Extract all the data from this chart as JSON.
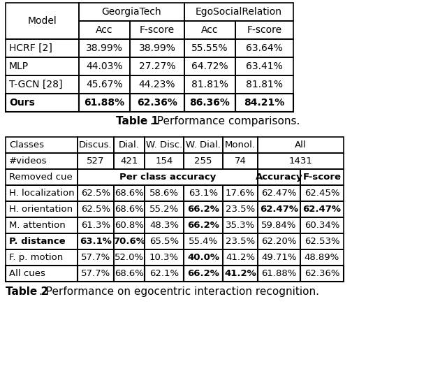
{
  "table1": {
    "rows": [
      [
        "HCRF [2]",
        "38.99%",
        "38.99%",
        "55.55%",
        "63.64%"
      ],
      [
        "MLP",
        "44.03%",
        "27.27%",
        "64.72%",
        "63.41%"
      ],
      [
        "T-GCN [28]",
        "45.67%",
        "44.23%",
        "81.81%",
        "81.81%"
      ]
    ],
    "last_row": [
      "Ours",
      "61.88%",
      "62.36%",
      "86.36%",
      "84.21%"
    ]
  },
  "table2": {
    "rows": [
      [
        "H. localization",
        "62.5%",
        "68.6%",
        "58.6%",
        "63.1%",
        "17.6%",
        "62.47%",
        "62.45%"
      ],
      [
        "H. orientation",
        "62.5%",
        "68.6%",
        "55.2%",
        "66.2%",
        "23.5%",
        "62.47%",
        "62.47%"
      ],
      [
        "M. attention",
        "61.3%",
        "60.8%",
        "48.3%",
        "66.2%",
        "35.3%",
        "59.84%",
        "60.34%"
      ],
      [
        "P. distance",
        "63.1%",
        "70.6%",
        "65.5%",
        "55.4%",
        "23.5%",
        "62.20%",
        "62.53%"
      ],
      [
        "F. p. motion",
        "57.7%",
        "52.0%",
        "10.3%",
        "40.0%",
        "41.2%",
        "49.71%",
        "48.89%"
      ]
    ],
    "rows_bold": [
      [
        false,
        false,
        false,
        false,
        false,
        false,
        false,
        false
      ],
      [
        false,
        false,
        false,
        false,
        true,
        false,
        true,
        true
      ],
      [
        false,
        false,
        false,
        false,
        true,
        false,
        false,
        false
      ],
      [
        true,
        true,
        true,
        false,
        false,
        false,
        false,
        false
      ],
      [
        false,
        false,
        false,
        false,
        true,
        false,
        false,
        false
      ]
    ],
    "last_row": [
      "All cues",
      "57.7%",
      "68.6%",
      "62.1%",
      "66.2%",
      "41.2%",
      "61.88%",
      "62.36%"
    ],
    "last_row_bold": [
      false,
      false,
      false,
      false,
      true,
      true,
      false,
      false
    ]
  },
  "bg_color": "#ffffff"
}
